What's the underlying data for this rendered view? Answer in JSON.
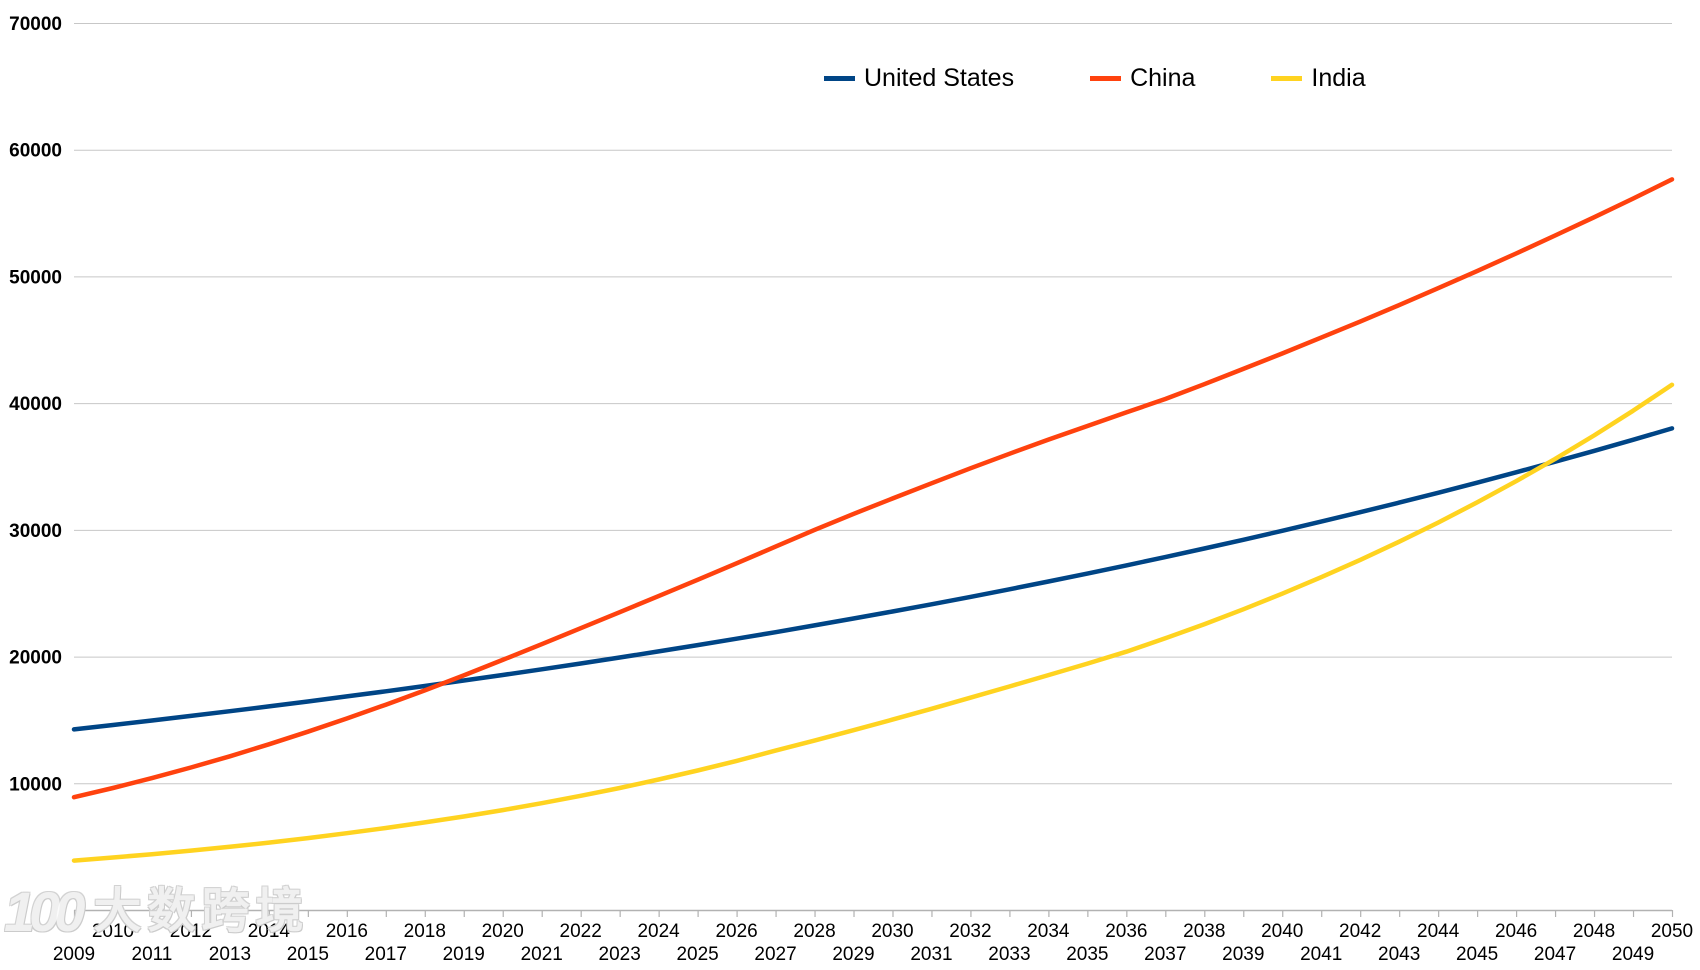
{
  "chart_data": {
    "type": "line",
    "title": "",
    "xlabel": "",
    "ylabel": "",
    "x": [
      2009,
      2010,
      2011,
      2012,
      2013,
      2014,
      2015,
      2016,
      2017,
      2018,
      2019,
      2020,
      2021,
      2022,
      2023,
      2024,
      2025,
      2026,
      2027,
      2028,
      2029,
      2030,
      2031,
      2032,
      2033,
      2034,
      2035,
      2036,
      2037,
      2038,
      2039,
      2040,
      2041,
      2042,
      2043,
      2044,
      2045,
      2046,
      2047,
      2048,
      2049,
      2050
    ],
    "ylim": [
      0,
      70000
    ],
    "ytick_step": 10000,
    "yticks": [
      "0",
      "10000",
      "20000",
      "30000",
      "40000",
      "50000",
      "60000",
      "70000"
    ],
    "grid": true,
    "xtick_stagger": true,
    "legend_position": "top",
    "series": [
      {
        "name": "United States",
        "color": "#004586",
        "values": [
          14256,
          14601,
          14954,
          15316,
          15687,
          16067,
          16456,
          16854,
          17262,
          17680,
          18108,
          18546,
          18995,
          19455,
          19926,
          20408,
          20902,
          21408,
          21926,
          22457,
          23001,
          23558,
          24128,
          24712,
          25310,
          25923,
          26551,
          27194,
          27852,
          28526,
          29217,
          29924,
          30648,
          31390,
          32150,
          32928,
          33725,
          34541,
          35377,
          36233,
          37110,
          38008
        ]
      },
      {
        "name": "China",
        "color": "#FF420E",
        "values": [
          8900,
          9630,
          10410,
          11243,
          12131,
          13077,
          14071,
          15112,
          16200,
          17334,
          18513,
          19735,
          20978,
          22237,
          23504,
          24773,
          26061,
          27364,
          28677,
          29996,
          31256,
          32475,
          33677,
          34856,
          36006,
          37122,
          38198,
          39268,
          40328,
          41497,
          42701,
          43918,
          45169,
          46434,
          47734,
          49071,
          50420,
          51807,
          53231,
          54669,
          56145,
          57661
        ]
      },
      {
        "name": "India",
        "color": "#FFD320",
        "values": [
          3900,
          4142,
          4403,
          4685,
          4989,
          5318,
          5674,
          6060,
          6472,
          6912,
          7382,
          7884,
          8428,
          9010,
          9631,
          10296,
          11006,
          11766,
          12578,
          13370,
          14186,
          15023,
          15879,
          16752,
          17640,
          18540,
          19448,
          20382,
          21442,
          22557,
          23730,
          24964,
          26262,
          27628,
          29065,
          30576,
          32166,
          33839,
          35598,
          37449,
          39397,
          41445
        ]
      }
    ]
  },
  "colors": {
    "background": "#FFFFFF",
    "gridline": "#C7C7C7",
    "axis": "#B2B2B2",
    "tick": "#B2B2B2",
    "label_text": "#000000"
  },
  "watermark": {
    "logo": "100",
    "text": "大数跨境"
  }
}
